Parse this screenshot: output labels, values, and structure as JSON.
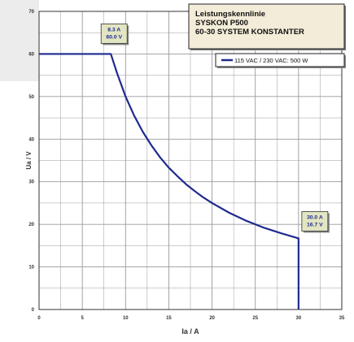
{
  "chart_data": {
    "type": "line",
    "title_lines": [
      "Leistungskennlinie",
      "SYSKON P500",
      "60-30 SYSTEM KONSTANTER"
    ],
    "xlabel": "Ia / A",
    "ylabel": "Ua / V",
    "xlim": [
      0,
      35
    ],
    "ylim": [
      0,
      70
    ],
    "x_ticks": [
      0,
      5,
      10,
      15,
      20,
      25,
      30,
      35
    ],
    "y_ticks": [
      0,
      10,
      20,
      30,
      40,
      50,
      60,
      70
    ],
    "grid": true,
    "legend_position": "top-right",
    "series": [
      {
        "name": "115 VAC / 230 VAC: 500 W",
        "color": "#1f2a8f",
        "x": [
          0,
          8.3,
          9,
          10,
          11,
          12,
          13,
          14,
          15,
          16,
          17,
          18,
          19,
          20,
          22,
          24,
          26,
          28,
          30,
          30
        ],
        "y": [
          60,
          60,
          55.6,
          50,
          45.5,
          41.7,
          38.5,
          35.7,
          33.3,
          31.3,
          29.4,
          27.8,
          26.3,
          25,
          22.7,
          20.8,
          19.2,
          17.9,
          16.7,
          0
        ]
      }
    ],
    "annotations": [
      {
        "name": "peak-annotation",
        "x": 8.3,
        "y": 60.0,
        "lines": [
          "8.3 A",
          "60.0 V"
        ]
      },
      {
        "name": "end-annotation",
        "x": 30.0,
        "y": 16.7,
        "lines": [
          "30.0 A",
          "16.7 V"
        ]
      }
    ],
    "colors": {
      "background": "#ffffff",
      "plot_area": "#ffffff",
      "grid": "#9a9a9a",
      "axis": "#333333",
      "title_box": "#f3ecd8",
      "annotation_box": "#e2e5c2",
      "left_panel": "#ececec"
    }
  }
}
